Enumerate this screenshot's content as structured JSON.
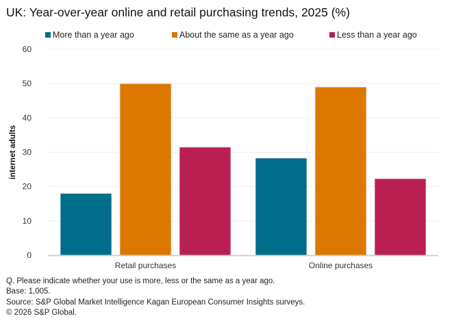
{
  "chart_data": {
    "type": "bar",
    "title": "UK: Year-over-year online and retail purchasing trends, 2025 (%)",
    "ylabel": "internet adults",
    "xlabel": "",
    "ylim": [
      0,
      60
    ],
    "yticks": [
      0,
      10,
      20,
      30,
      40,
      50,
      60
    ],
    "grid": true,
    "legend_placement": "top",
    "categories": [
      "Retail purchases",
      "Online purchases"
    ],
    "series": [
      {
        "name": "More than a year ago",
        "color": "#006e8a",
        "values": [
          18,
          28.3
        ]
      },
      {
        "name": "About the same as a year ago",
        "color": "#dc7800",
        "values": [
          50,
          49
        ]
      },
      {
        "name": "Less than a year ago",
        "color": "#ba1f52",
        "values": [
          31.5,
          22.3
        ]
      }
    ]
  },
  "footnotes": [
    "Q. Please indicate whether your use is more, less or the same as a year ago.",
    "Base: 1,005.",
    "Source: S&P Global Market Intelligence Kagan European Consumer Insights surveys.",
    "© 2026 S&P Global."
  ]
}
